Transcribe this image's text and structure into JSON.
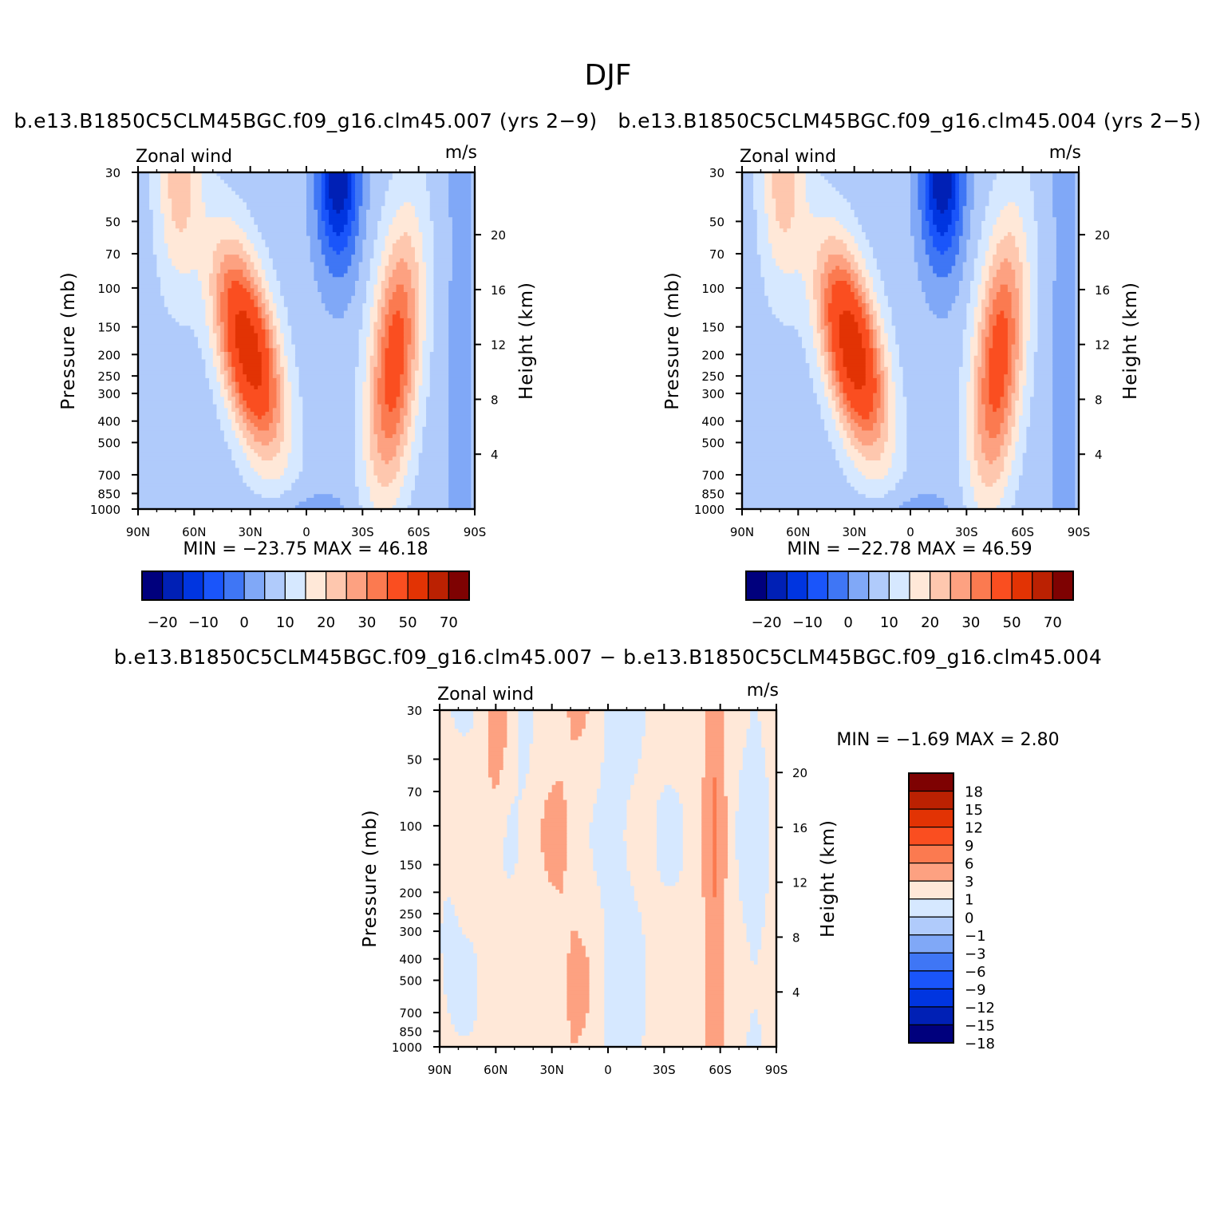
{
  "figure": {
    "title": "DJF"
  },
  "chart_data": [
    {
      "type": "heatmap",
      "title": "b.e13.B1850C5CLM45BGC.f09_g16.clm45.007 (yrs 2−9)",
      "left_label": "Zonal wind",
      "right_label": "m/s",
      "xlabel": "",
      "ylabel": "Pressure (mb)",
      "ylabel_right": "Height (km)",
      "x_ticks": [
        "90N",
        "60N",
        "30N",
        "0",
        "30S",
        "60S",
        "90S"
      ],
      "y_ticks": [
        "30",
        "50",
        "70",
        "100",
        "150",
        "200",
        "250",
        "300",
        "400",
        "500",
        "700",
        "850",
        "1000"
      ],
      "y_ticks_right": [
        "20",
        "16",
        "12",
        "8",
        "4"
      ],
      "min_max_text": "MIN = −23.75   MAX =   46.18",
      "stats": {
        "min": -23.75,
        "max": 46.18
      },
      "jets": [
        {
          "lat": 31,
          "p": 190,
          "speed": 46.18
        },
        {
          "lat": -47,
          "p": 215,
          "speed": 34
        }
      ],
      "colorbar": {
        "orientation": "horizontal",
        "labels": [
          "−20",
          "−10",
          "0",
          "10",
          "20",
          "30",
          "50",
          "70"
        ],
        "colors": [
          "#00007d",
          "#0020b5",
          "#0035e0",
          "#1a55fa",
          "#3f76f5",
          "#80a8f7",
          "#b0cbfb",
          "#d6e8ff",
          "#ffe8d8",
          "#fec7ae",
          "#fda181",
          "#fb7a50",
          "#fa4e20",
          "#e23304",
          "#bb2102",
          "#7e0202"
        ]
      }
    },
    {
      "type": "heatmap",
      "title": "b.e13.B1850C5CLM45BGC.f09_g16.clm45.004 (yrs 2−5)",
      "left_label": "Zonal wind",
      "right_label": "m/s",
      "xlabel": "",
      "ylabel": "Pressure (mb)",
      "ylabel_right": "Height (km)",
      "x_ticks": [
        "90N",
        "60N",
        "30N",
        "0",
        "30S",
        "60S",
        "90S"
      ],
      "y_ticks": [
        "30",
        "50",
        "70",
        "100",
        "150",
        "200",
        "250",
        "300",
        "400",
        "500",
        "700",
        "850",
        "1000"
      ],
      "y_ticks_right": [
        "20",
        "16",
        "12",
        "8",
        "4"
      ],
      "min_max_text": "MIN = −22.78   MAX =   46.59",
      "stats": {
        "min": -22.78,
        "max": 46.59
      },
      "jets": [
        {
          "lat": 31,
          "p": 190,
          "speed": 46.59
        },
        {
          "lat": -47,
          "p": 215,
          "speed": 34
        }
      ],
      "colorbar": {
        "orientation": "horizontal",
        "labels": [
          "−20",
          "−10",
          "0",
          "10",
          "20",
          "30",
          "50",
          "70"
        ],
        "colors": [
          "#00007d",
          "#0020b5",
          "#0035e0",
          "#1a55fa",
          "#3f76f5",
          "#80a8f7",
          "#b0cbfb",
          "#d6e8ff",
          "#ffe8d8",
          "#fec7ae",
          "#fda181",
          "#fb7a50",
          "#fa4e20",
          "#e23304",
          "#bb2102",
          "#7e0202"
        ]
      }
    },
    {
      "type": "heatmap",
      "title": "b.e13.B1850C5CLM45BGC.f09_g16.clm45.007 − b.e13.B1850C5CLM45BGC.f09_g16.clm45.004",
      "left_label": "Zonal wind",
      "right_label": "m/s",
      "xlabel": "",
      "ylabel": "Pressure (mb)",
      "ylabel_right": "Height (km)",
      "x_ticks": [
        "90N",
        "60N",
        "30N",
        "0",
        "30S",
        "60S",
        "90S"
      ],
      "y_ticks": [
        "30",
        "50",
        "70",
        "100",
        "150",
        "200",
        "250",
        "300",
        "400",
        "500",
        "700",
        "850",
        "1000"
      ],
      "y_ticks_right": [
        "20",
        "16",
        "12",
        "8",
        "4"
      ],
      "min_max_text": "MIN =   −1.69   MAX =     2.80",
      "stats": {
        "min": -1.69,
        "max": 2.8
      },
      "colorbar": {
        "orientation": "vertical",
        "labels": [
          "18",
          "15",
          "12",
          "9",
          "6",
          "3",
          "1",
          "0",
          "−1",
          "−3",
          "−6",
          "−9",
          "−12",
          "−15",
          "−18"
        ],
        "colors": [
          "#7e0202",
          "#bb2102",
          "#e23304",
          "#fa4e20",
          "#fb7a50",
          "#fda181",
          "#ffe8d8",
          "#d6e8ff",
          "#b0cbfb",
          "#80a8f7",
          "#3f76f5",
          "#1a55fa",
          "#0035e0",
          "#0020b5",
          "#00007d"
        ]
      }
    }
  ]
}
